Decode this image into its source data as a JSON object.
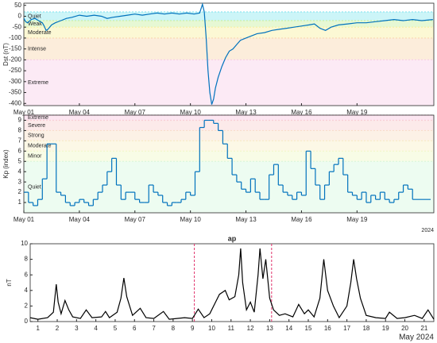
{
  "chart_data": [
    {
      "type": "line",
      "ylabel": "Dst (nT)",
      "color": "#0072BD",
      "x": [
        1.0,
        1.1,
        1.2,
        1.4,
        1.6,
        1.8,
        2.0,
        2.1,
        2.2,
        2.3,
        2.5,
        2.7,
        3.0,
        3.3,
        3.6,
        4.0,
        4.4,
        4.8,
        5.2,
        5.5,
        5.8,
        6.2,
        6.6,
        7.0,
        7.4,
        7.8,
        8.2,
        8.6,
        9.0,
        9.4,
        9.8,
        10.2,
        10.5,
        10.65,
        10.75,
        10.85,
        10.95,
        11.05,
        11.15,
        11.25,
        11.35,
        11.5,
        11.7,
        11.9,
        12.1,
        12.3,
        12.5,
        12.7,
        13.0,
        13.3,
        13.6,
        14.0,
        14.4,
        14.8,
        15.2,
        15.6,
        16.0,
        16.4,
        16.7,
        17.0,
        17.3,
        17.6,
        18.0,
        18.5,
        19.0,
        19.5,
        20.0,
        20.5,
        21.0,
        21.5,
        22.0,
        22.5,
        23.1
      ],
      "values": [
        -10,
        -25,
        -30,
        -15,
        -10,
        -20,
        -30,
        -45,
        -65,
        -60,
        -40,
        -30,
        -20,
        -10,
        -5,
        5,
        0,
        5,
        0,
        -10,
        -5,
        0,
        5,
        10,
        5,
        10,
        15,
        10,
        15,
        10,
        15,
        10,
        15,
        55,
        20,
        -100,
        -250,
        -350,
        -405,
        -380,
        -330,
        -280,
        -230,
        -190,
        -160,
        -150,
        -130,
        -110,
        -100,
        -90,
        -80,
        -75,
        -65,
        -60,
        -55,
        -50,
        -45,
        -40,
        -35,
        -55,
        -65,
        -50,
        -40,
        -35,
        -30,
        -30,
        -25,
        -20,
        -15,
        -20,
        -15,
        -20,
        -15
      ],
      "xlim": [
        1,
        23.15
      ],
      "xticks": [
        {
          "value": 1,
          "label": "May 01"
        },
        {
          "value": 4,
          "label": "May 04"
        },
        {
          "value": 7,
          "label": "May 07"
        },
        {
          "value": 10,
          "label": "May 10"
        },
        {
          "value": 13,
          "label": "May 13"
        },
        {
          "value": 16,
          "label": "May 16"
        },
        {
          "value": 19,
          "label": "May 19"
        }
      ],
      "ylim": [
        -410,
        60
      ],
      "yticks": [
        50,
        0,
        -50,
        -100,
        -150,
        -200,
        -250,
        -300,
        -350,
        -400
      ],
      "zones": [
        {
          "label": "Quiet",
          "from": -20,
          "to": 20,
          "color": "#8fe8f0"
        },
        {
          "label": "Weak",
          "from": -50,
          "to": -20,
          "color": "#c8f0a0"
        },
        {
          "label": "Moderate",
          "from": -100,
          "to": -50,
          "color": "#f8f0a0"
        },
        {
          "label": "Intense",
          "from": -200,
          "to": -100,
          "color": "#f8d8b0"
        },
        {
          "label": "Extreme",
          "from": -410,
          "to": -200,
          "color": "#f8d0e8"
        }
      ]
    },
    {
      "type": "step",
      "ylabel": "Kp (index)",
      "color": "#0072BD",
      "annotation": "2024",
      "x": [
        1,
        1.25,
        1.5,
        1.75,
        2,
        2.25,
        2.5,
        2.75,
        3,
        3.25,
        3.5,
        3.75,
        4,
        4.25,
        4.5,
        4.75,
        5,
        5.25,
        5.5,
        5.75,
        6,
        6.25,
        6.5,
        6.75,
        7,
        7.25,
        7.5,
        7.75,
        8,
        8.25,
        8.5,
        8.75,
        9,
        9.25,
        9.5,
        9.75,
        10,
        10.25,
        10.5,
        10.75,
        11,
        11.25,
        11.5,
        11.75,
        12,
        12.25,
        12.5,
        12.75,
        13,
        13.25,
        13.5,
        13.75,
        14,
        14.25,
        14.5,
        14.75,
        15,
        15.25,
        15.5,
        15.75,
        16,
        16.25,
        16.5,
        16.75,
        17,
        17.25,
        17.5,
        17.75,
        18,
        18.25,
        18.5,
        18.75,
        19,
        19.25,
        19.5,
        19.75,
        20,
        20.25,
        20.5,
        20.75,
        21,
        21.25,
        21.5,
        21.75,
        22
      ],
      "values": [
        2,
        1,
        0.7,
        1.3,
        3.3,
        6.7,
        6.7,
        2,
        1.7,
        1,
        0.7,
        1,
        1.3,
        1,
        0.7,
        1.3,
        2,
        2.7,
        4,
        5.3,
        2.7,
        1.3,
        2,
        2,
        1.3,
        1,
        1,
        2.7,
        2,
        1.7,
        1,
        0.7,
        1,
        1,
        1.3,
        2,
        1.7,
        4,
        8.3,
        9,
        9,
        8.7,
        8,
        6.7,
        5.3,
        3.7,
        3,
        2.3,
        2,
        3.3,
        2,
        1.3,
        1.3,
        3.7,
        4.7,
        2.7,
        2,
        1.7,
        1.3,
        2,
        1.7,
        6,
        4.3,
        2.7,
        1.3,
        2.7,
        4,
        4.7,
        5.3,
        3.7,
        2,
        1.7,
        1.3,
        2,
        1,
        1.7,
        1.3,
        2,
        1.3,
        1,
        1.3,
        2,
        2.7,
        2.3,
        1.3
      ],
      "xlim": [
        1,
        23.15
      ],
      "xticks": [
        {
          "value": 1,
          "label": "May 01"
        },
        {
          "value": 4,
          "label": "May 04"
        },
        {
          "value": 7,
          "label": "May 07"
        },
        {
          "value": 10,
          "label": "May 10"
        },
        {
          "value": 13,
          "label": "May 13"
        },
        {
          "value": 16,
          "label": "May 16"
        },
        {
          "value": 19,
          "label": "May 19"
        }
      ],
      "ylim": [
        0,
        9.5
      ],
      "yticks": [
        1,
        2,
        3,
        4,
        5,
        6,
        7,
        8,
        9
      ],
      "zones": [
        {
          "label": "Quiet",
          "from": 0,
          "to": 5,
          "color": "#d8f8e0"
        },
        {
          "label": "Minor",
          "from": 5,
          "to": 6,
          "color": "#f0f8c8"
        },
        {
          "label": "Moderate",
          "from": 6,
          "to": 7,
          "color": "#f8f0c8"
        },
        {
          "label": "Strong",
          "from": 7,
          "to": 8,
          "color": "#f8e0c8"
        },
        {
          "label": "Severe",
          "from": 8,
          "to": 9,
          "color": "#f8d0d0"
        },
        {
          "label": "Extreme",
          "from": 9,
          "to": 9.5,
          "color": "#f8c8e0"
        }
      ]
    },
    {
      "type": "line",
      "title": "ap",
      "ylabel": "nT",
      "color": "#000000",
      "annotation": "May 2024",
      "x": [
        0.6,
        1.0,
        1.5,
        1.8,
        1.95,
        2.05,
        2.2,
        2.4,
        2.6,
        2.8,
        3.2,
        3.5,
        3.8,
        4.3,
        4.5,
        4.7,
        5.1,
        5.3,
        5.45,
        5.6,
        5.9,
        6.3,
        6.6,
        7.0,
        7.5,
        7.8,
        8.2,
        8.6,
        9.0,
        9.3,
        9.6,
        9.9,
        10.2,
        10.4,
        10.7,
        10.9,
        11.2,
        11.4,
        11.5,
        11.6,
        11.8,
        12.0,
        12.2,
        12.4,
        12.5,
        12.65,
        12.8,
        13.0,
        13.2,
        13.5,
        13.8,
        14.2,
        14.5,
        14.8,
        15.0,
        15.3,
        15.6,
        15.8,
        16.0,
        16.3,
        16.6,
        17.0,
        17.2,
        17.35,
        17.5,
        17.7,
        18.0,
        18.5,
        19.0,
        19.2,
        19.6,
        20.0,
        20.5,
        20.9,
        21.2,
        21.5
      ],
      "values": [
        0.5,
        0.3,
        0.5,
        1.2,
        4.8,
        2.5,
        1,
        2.7,
        1.5,
        0.6,
        0.4,
        1.5,
        0.5,
        0.6,
        1.3,
        0.5,
        1.2,
        3,
        5.6,
        3.2,
        0.8,
        1.7,
        0.5,
        0.4,
        1.3,
        0.3,
        0.4,
        0.5,
        0.4,
        1.6,
        0.5,
        1,
        2.5,
        3.5,
        4,
        2.8,
        3.2,
        6,
        9.4,
        5,
        1.5,
        2.5,
        1.2,
        6,
        9.4,
        5.5,
        8,
        3,
        1.5,
        0.8,
        1,
        0.6,
        2.2,
        1,
        1.5,
        0.6,
        3,
        8,
        4,
        2,
        0.5,
        2,
        5,
        8,
        5.5,
        3,
        0.8,
        0.5,
        0.4,
        1.2,
        0.4,
        0.5,
        0.8,
        0.4,
        1.5,
        0.3
      ],
      "xlim": [
        0.6,
        21.5
      ],
      "xticks": [
        1,
        2,
        3,
        4,
        5,
        6,
        7,
        8,
        9,
        10,
        11,
        12,
        13,
        14,
        15,
        16,
        17,
        18,
        19,
        20,
        21
      ],
      "ylim": [
        0,
        10
      ],
      "yticks": [
        0,
        2,
        4,
        6,
        8,
        10
      ],
      "vlines": [
        9.1,
        13.1
      ],
      "vline_color": "#e0306a"
    }
  ]
}
